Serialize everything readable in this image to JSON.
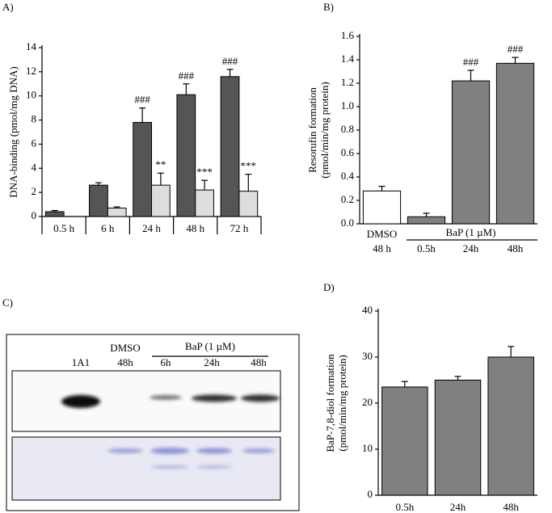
{
  "chart_data": [
    {
      "type": "bar",
      "title": "A)",
      "y_label": "DNA-binding (pmol/mg DNA)",
      "categories": [
        "0.5 h",
        "6 h",
        "24 h",
        "48 h",
        "72 h"
      ],
      "series": [
        {
          "color": "#555555",
          "values": [
            0.4,
            2.6,
            7.8,
            10.1,
            11.6
          ],
          "errors": [
            0.1,
            0.2,
            1.2,
            0.9,
            0.6
          ],
          "labels": [
            null,
            null,
            "###",
            "###",
            "###"
          ]
        },
        {
          "color": "#dddddd",
          "values": [
            0,
            0.7,
            2.6,
            2.2,
            2.1
          ],
          "errors": [
            0,
            0.1,
            1.0,
            0.8,
            1.4
          ],
          "labels": [
            null,
            null,
            "**",
            "***",
            "***"
          ]
        }
      ],
      "ylim": [
        0,
        14
      ],
      "yticks": [
        0,
        2,
        4,
        6,
        8,
        10,
        12,
        14
      ]
    },
    {
      "type": "bar",
      "title": "B)",
      "y_label": [
        "Resorufin formation",
        "(pmol/min/mg protein)"
      ],
      "control_label": "DMSO",
      "treatment_label": "BaP (1 µM)",
      "categories": [
        "48 h",
        "0.5h",
        "24h",
        "48h"
      ],
      "values": [
        0.28,
        0.06,
        1.22,
        1.37
      ],
      "errors": [
        0.04,
        0.03,
        0.09,
        0.05
      ],
      "labels": [
        null,
        null,
        "###",
        "###"
      ],
      "colors": [
        "#ffffff",
        "#808080",
        "#808080",
        "#808080"
      ],
      "ylim": [
        0,
        1.6
      ],
      "yticks": [
        {
          "value": 0,
          "label": "0.0"
        },
        0.2,
        0.4,
        0.6,
        0.8,
        {
          "value": 1,
          "label": "1.0"
        },
        1.2,
        1.4,
        1.6
      ]
    },
    {
      "type": "bar",
      "title": "D)",
      "y_label": [
        "BaP-7,8-diol formation",
        "(pmol/min/mg protein)"
      ],
      "categories": [
        "0.5h",
        "24h",
        "48h"
      ],
      "values": [
        23.5,
        25,
        30
      ],
      "errors": [
        1.2,
        0.8,
        2.3
      ],
      "color": "#808080",
      "ylim": [
        0,
        40
      ],
      "yticks": [
        0,
        10,
        20,
        30,
        40
      ]
    }
  ],
  "blot": {
    "title": "C)",
    "control_label": "DMSO",
    "treatment_label": "BaP (1 µM)",
    "lanes": [
      "1A1",
      "48h",
      "6h",
      "24h",
      "48h"
    ]
  }
}
